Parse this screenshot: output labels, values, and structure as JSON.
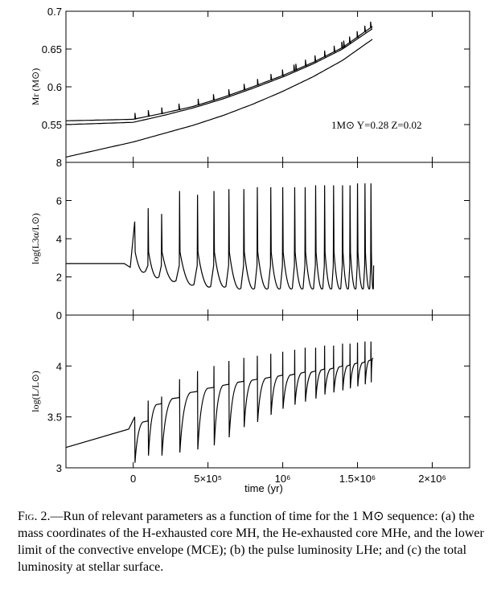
{
  "caption": {
    "fig_label": "Fig. 2.",
    "text": "—Run of relevant parameters as a function of time for the 1 M⊙ sequence: (a) the mass coordinates of the H-exhausted core MH, the He-exhausted core MHe, and the lower limit of the convective envelope (MCE); (b) the pulse luminosity LHe; and (c) the total luminosity at stellar surface."
  },
  "x_axis": {
    "label": "time (yr)",
    "ticks": [
      {
        "value": 0,
        "label": "0"
      },
      {
        "value": 500000,
        "label": "5×10⁵"
      },
      {
        "value": 1000000,
        "label": "10⁶"
      },
      {
        "value": 1500000,
        "label": "1.5×10⁶"
      },
      {
        "value": 2000000,
        "label": "2×10⁶"
      }
    ],
    "range": [
      -450000,
      2250000
    ]
  },
  "chart_data": [
    {
      "type": "line",
      "panel": "a",
      "ylabel": "Mr (M⊙)",
      "ylim": [
        0.5,
        0.7
      ],
      "yticks": [
        "0.55",
        "0.6",
        "0.65",
        "0.7"
      ],
      "annotation": "1M⊙ Y=0.28 Z=0.02",
      "x": [
        -450000,
        0,
        200000,
        400000,
        600000,
        800000,
        1000000,
        1200000,
        1400000,
        1600000
      ],
      "series": [
        {
          "values": [
            0.555,
            0.557,
            0.565,
            0.574,
            0.586,
            0.6,
            0.615,
            0.632,
            0.652,
            0.68
          ]
        },
        {
          "values": [
            0.55,
            0.553,
            0.562,
            0.572,
            0.584,
            0.598,
            0.613,
            0.63,
            0.65,
            0.677
          ]
        },
        {
          "values": [
            0.507,
            0.527,
            0.538,
            0.549,
            0.562,
            0.577,
            0.594,
            0.613,
            0.635,
            0.663
          ]
        }
      ],
      "pulse_times": [
        10000,
        100000,
        190000,
        310000,
        430000,
        540000,
        640000,
        740000,
        830000,
        920000,
        1000000,
        1080000,
        1150000,
        1220000,
        1280000,
        1340000,
        1400000,
        1450000,
        1500000,
        1550000,
        1590000
      ]
    },
    {
      "type": "line",
      "panel": "b",
      "ylabel": "log(L3α/L⊙)",
      "ylim": [
        0,
        8
      ],
      "yticks": [
        "0",
        "2",
        "4",
        "6",
        "8"
      ],
      "baseline": 2.7,
      "pulse_times": [
        10000,
        100000,
        190000,
        310000,
        430000,
        540000,
        640000,
        740000,
        830000,
        920000,
        1000000,
        1080000,
        1150000,
        1220000,
        1280000,
        1340000,
        1400000,
        1450000,
        1500000,
        1550000,
        1590000
      ],
      "pulse_peaks": [
        4.9,
        5.6,
        5.3,
        6.5,
        6.3,
        6.5,
        6.6,
        6.6,
        6.7,
        6.7,
        6.7,
        6.7,
        6.7,
        6.8,
        6.8,
        6.8,
        6.8,
        6.8,
        6.9,
        6.9,
        6.9
      ],
      "interpulse_minima": [
        2.3,
        2.0,
        1.8,
        1.6,
        1.5,
        1.5,
        1.4,
        1.4,
        1.4,
        1.4,
        1.4,
        1.4,
        1.4,
        1.4,
        1.4,
        1.4,
        1.4,
        1.4,
        1.4,
        1.4,
        1.4
      ]
    },
    {
      "type": "line",
      "panel": "c",
      "ylabel": "log(L/L⊙)",
      "ylim": [
        3.0,
        4.5
      ],
      "yticks": [
        "3",
        "3.5",
        "4"
      ],
      "x_start": -450000,
      "y_start": 3.2,
      "pulse_times": [
        10000,
        100000,
        190000,
        310000,
        430000,
        540000,
        640000,
        740000,
        830000,
        920000,
        1000000,
        1080000,
        1150000,
        1220000,
        1280000,
        1340000,
        1400000,
        1450000,
        1500000,
        1550000,
        1590000
      ],
      "dip_minima": [
        3.05,
        3.12,
        3.12,
        3.15,
        3.18,
        3.22,
        3.3,
        3.4,
        3.45,
        3.52,
        3.58,
        3.62,
        3.65,
        3.68,
        3.72,
        3.74,
        3.76,
        3.78,
        3.8,
        3.82,
        3.84
      ],
      "peak_spikes": [
        3.5,
        3.66,
        3.7,
        3.87,
        3.95,
        4.0,
        4.05,
        4.08,
        4.1,
        4.12,
        4.14,
        4.16,
        4.18,
        4.18,
        4.2,
        4.2,
        4.22,
        4.22,
        4.23,
        4.24,
        4.24
      ],
      "plateau": [
        3.45,
        3.62,
        3.68,
        3.74,
        3.78,
        3.81,
        3.84,
        3.86,
        3.88,
        3.9,
        3.91,
        3.93,
        3.94,
        3.96,
        3.97,
        3.99,
        4.0,
        4.02,
        4.03,
        4.05,
        4.07
      ]
    }
  ]
}
